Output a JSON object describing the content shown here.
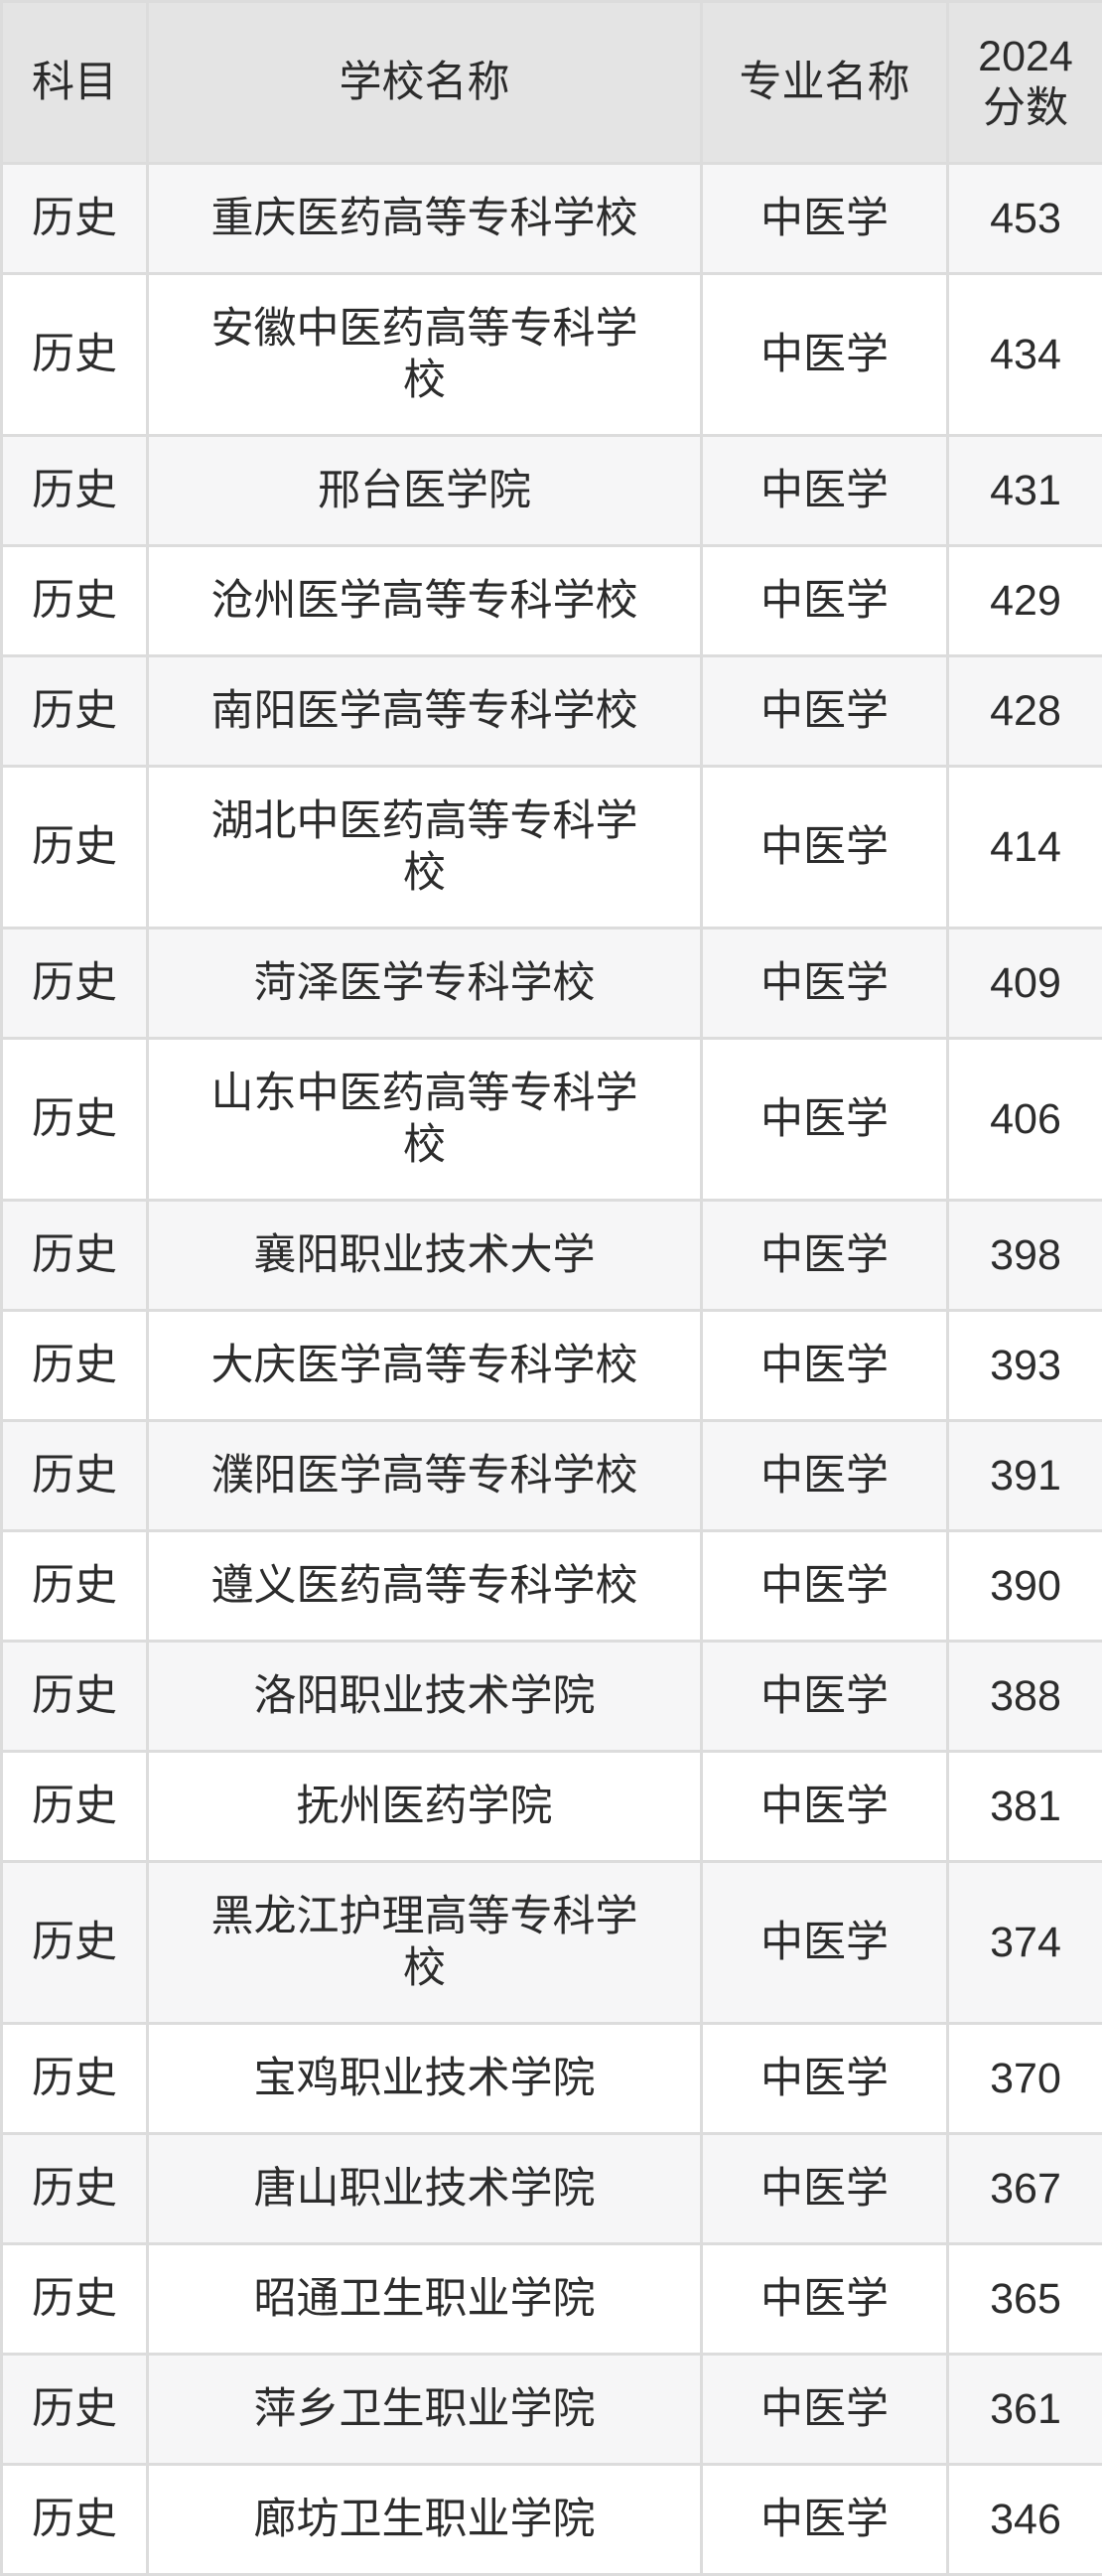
{
  "colors": {
    "header_bg": "#e4e4e4",
    "row_alt_bg": "#f6f6f7",
    "border": "#dcdcdc",
    "text": "#2c2c2c",
    "page_bg": "#ffffff"
  },
  "table": {
    "headers": {
      "subject": "科目",
      "school": "学校名称",
      "major": "专业名称",
      "score": "2024分数"
    },
    "rows": [
      {
        "subject": "历史",
        "school": "重庆医药高等专科学校",
        "major": "中医学",
        "score": "453"
      },
      {
        "subject": "历史",
        "school": "安徽中医药高等专科学校",
        "major": "中医学",
        "score": "434"
      },
      {
        "subject": "历史",
        "school": "邢台医学院",
        "major": "中医学",
        "score": "431"
      },
      {
        "subject": "历史",
        "school": "沧州医学高等专科学校",
        "major": "中医学",
        "score": "429"
      },
      {
        "subject": "历史",
        "school": "南阳医学高等专科学校",
        "major": "中医学",
        "score": "428"
      },
      {
        "subject": "历史",
        "school": "湖北中医药高等专科学校",
        "major": "中医学",
        "score": "414"
      },
      {
        "subject": "历史",
        "school": "菏泽医学专科学校",
        "major": "中医学",
        "score": "409"
      },
      {
        "subject": "历史",
        "school": "山东中医药高等专科学校",
        "major": "中医学",
        "score": "406"
      },
      {
        "subject": "历史",
        "school": "襄阳职业技术大学",
        "major": "中医学",
        "score": "398"
      },
      {
        "subject": "历史",
        "school": "大庆医学高等专科学校",
        "major": "中医学",
        "score": "393"
      },
      {
        "subject": "历史",
        "school": "濮阳医学高等专科学校",
        "major": "中医学",
        "score": "391"
      },
      {
        "subject": "历史",
        "school": "遵义医药高等专科学校",
        "major": "中医学",
        "score": "390"
      },
      {
        "subject": "历史",
        "school": "洛阳职业技术学院",
        "major": "中医学",
        "score": "388"
      },
      {
        "subject": "历史",
        "school": "抚州医药学院",
        "major": "中医学",
        "score": "381"
      },
      {
        "subject": "历史",
        "school": "黑龙江护理高等专科学校",
        "major": "中医学",
        "score": "374"
      },
      {
        "subject": "历史",
        "school": "宝鸡职业技术学院",
        "major": "中医学",
        "score": "370"
      },
      {
        "subject": "历史",
        "school": "唐山职业技术学院",
        "major": "中医学",
        "score": "367"
      },
      {
        "subject": "历史",
        "school": "昭通卫生职业学院",
        "major": "中医学",
        "score": "365"
      },
      {
        "subject": "历史",
        "school": "萍乡卫生职业学院",
        "major": "中医学",
        "score": "361"
      },
      {
        "subject": "历史",
        "school": "廊坊卫生职业学院",
        "major": "中医学",
        "score": "346"
      }
    ]
  }
}
